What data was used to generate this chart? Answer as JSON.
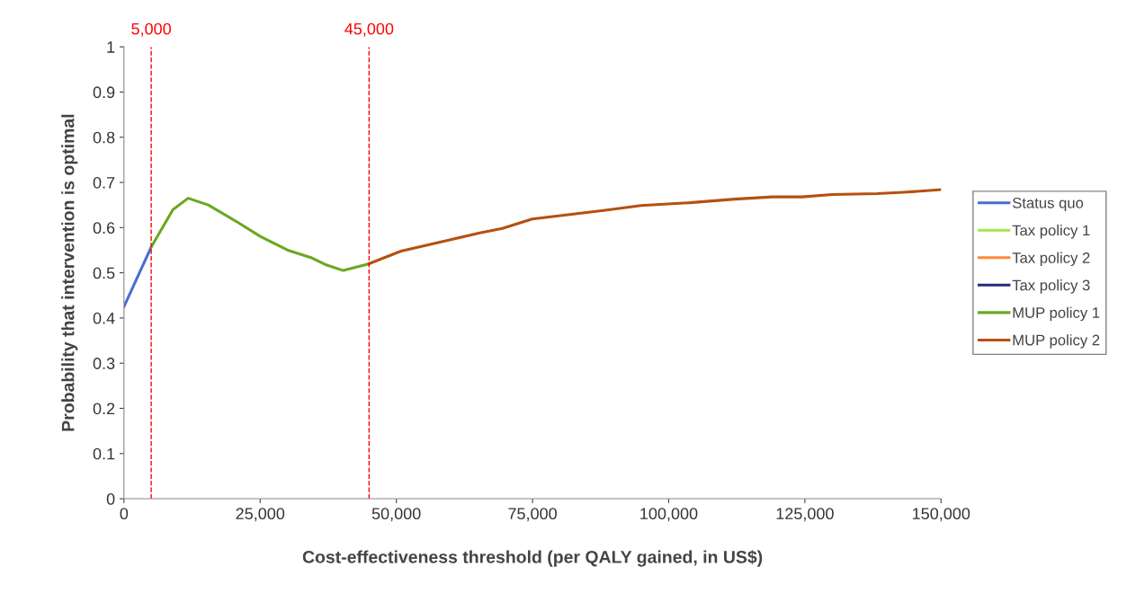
{
  "chart_data": {
    "type": "line",
    "xlabel": "Cost-effectiveness threshold (per QALY gained, in US$)",
    "ylabel": "Probability that intervention is optimal",
    "xlim": [
      0,
      150000
    ],
    "ylim": [
      0,
      1
    ],
    "xticks": [
      {
        "value": 0,
        "label": "0"
      },
      {
        "value": 25000,
        "label": "25,000"
      },
      {
        "value": 50000,
        "label": "50,000"
      },
      {
        "value": 75000,
        "label": "75,000"
      },
      {
        "value": 100000,
        "label": "100,000"
      },
      {
        "value": 125000,
        "label": "125,000"
      },
      {
        "value": 150000,
        "label": "150,000"
      }
    ],
    "yticks": [
      0,
      0.1,
      0.2,
      0.3,
      0.4,
      0.5,
      0.6,
      0.7,
      0.8,
      0.9,
      1
    ],
    "grid": false,
    "legend": "right",
    "marker": "none",
    "line_style": "solid",
    "ref_lines": [
      {
        "axis": "x",
        "value": 5000,
        "label": "5,000",
        "color": "#ff0000",
        "line_style": "dashed"
      },
      {
        "axis": "x",
        "value": 45000,
        "label": "45,000",
        "color": "#ff0000",
        "line_style": "dashed"
      }
    ],
    "series": [
      {
        "name": "Status quo",
        "color": "#4a6cd4",
        "x": [
          0,
          5000
        ],
        "values": [
          0.425,
          0.557
        ]
      },
      {
        "name": "Tax policy 1",
        "color": "#a6e64a"
      },
      {
        "name": "Tax policy 2",
        "color": "#ff8833"
      },
      {
        "name": "Tax policy 3",
        "color": "#1f2d7a"
      },
      {
        "name": "MUP policy 1",
        "color": "#6aa820",
        "x": [
          5000,
          9000,
          11780,
          15480,
          20700,
          25100,
          30070,
          34480,
          37230,
          40260,
          45000
        ],
        "values": [
          0.557,
          0.64,
          0.665,
          0.65,
          0.613,
          0.58,
          0.55,
          0.533,
          0.517,
          0.505,
          0.52
        ]
      },
      {
        "name": "MUP policy 2",
        "color": "#b5500f",
        "x": [
          45000,
          50850,
          59800,
          65300,
          69450,
          74950,
          79080,
          88030,
          94910,
          103860,
          112120,
          119000,
          124500,
          130020,
          138280,
          143100,
          150000
        ],
        "values": [
          0.52,
          0.548,
          0.573,
          0.588,
          0.598,
          0.619,
          0.625,
          0.638,
          0.649,
          0.655,
          0.663,
          0.668,
          0.668,
          0.673,
          0.675,
          0.678,
          0.684
        ]
      }
    ]
  }
}
